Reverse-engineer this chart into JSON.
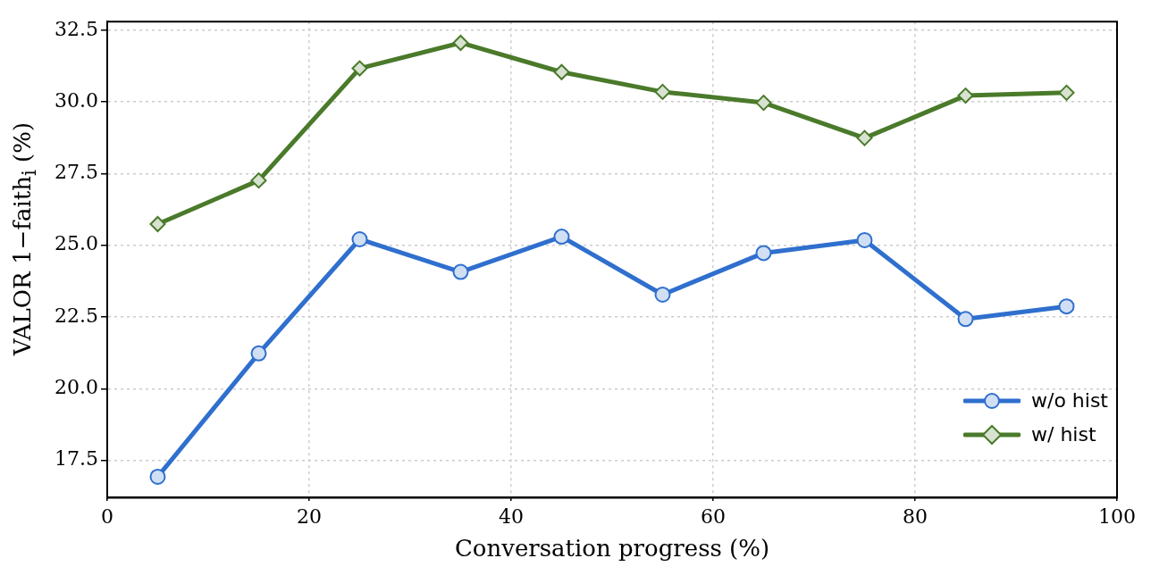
{
  "chart_data": {
    "type": "line",
    "xlabel": "Conversation progress (%)",
    "ylabel": "VALOR 1−faith$_{i}$ (%)",
    "x": [
      5,
      15,
      25,
      35,
      45,
      55,
      65,
      75,
      85,
      95
    ],
    "series": [
      {
        "name": "w/o hist",
        "color": "#2f6fce",
        "marker": "circle",
        "values": [
          16.93,
          21.23,
          25.21,
          24.07,
          25.3,
          23.28,
          24.73,
          25.18,
          22.43,
          22.87
        ]
      },
      {
        "name": "w/ hist",
        "color": "#4a7a2a",
        "marker": "diamond",
        "values": [
          25.74,
          27.26,
          31.17,
          32.06,
          31.04,
          30.35,
          29.97,
          28.74,
          30.22,
          30.32
        ]
      }
    ],
    "xlim": [
      0,
      100
    ],
    "xticks": [
      0,
      20,
      40,
      60,
      80,
      100
    ],
    "ylim": [
      16.2,
      32.8
    ],
    "yticks": [
      {
        "value": 17.5,
        "label": "17.5"
      },
      {
        "value": 20,
        "label": "20.0"
      },
      {
        "value": 22.5,
        "label": "22.5"
      },
      {
        "value": 25,
        "label": "25.0"
      },
      {
        "value": 27.5,
        "label": "27.5"
      },
      {
        "value": 30,
        "label": "30.0"
      },
      {
        "value": 32.5,
        "label": "32.5"
      }
    ],
    "grid": true,
    "legend": "bottom right",
    "line_style": "solid"
  }
}
